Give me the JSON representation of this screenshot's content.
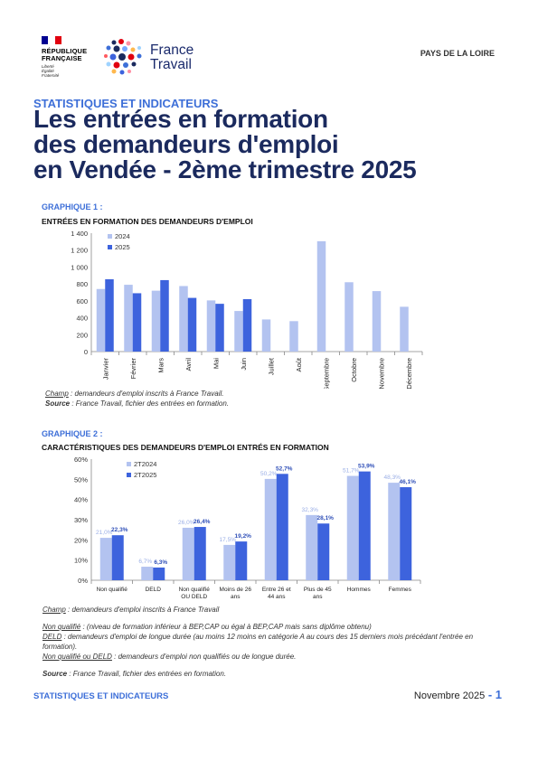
{
  "header": {
    "rf_lines": [
      "RÉPUBLIQUE",
      "FRANÇAISE"
    ],
    "rf_motto": [
      "Liberté",
      "Égalité",
      "Fraternité"
    ],
    "brand_lines": [
      "France",
      "Travail"
    ],
    "region": "PAYS DE LA LOIRE",
    "flag_colors": [
      "#000091",
      "#ffffff",
      "#e1000f"
    ]
  },
  "kicker": "STATISTIQUES ET INDICATEURS",
  "title_lines": [
    "Les entrées en formation",
    "des demandeurs d'emploi",
    "en Vendée - 2ème trimestre 2025"
  ],
  "colors": {
    "light": "#b3c3f0",
    "dark": "#3d63dd",
    "accent": "#3d6fd8",
    "title": "#1b2a5e"
  },
  "chart1": {
    "label": "GRAPHIQUE 1 :",
    "title": "ENTRÉES EN FORMATION DES DEMANDEURS D'EMPLOI",
    "notes": {
      "champ_label": "Champ",
      "champ_text": " : demandeurs d'emploi inscrits à France Travail.",
      "source_label": "Source",
      "source_text": " : France Travail, fichier des entrées en formation."
    }
  },
  "chart2": {
    "label": "GRAPHIQUE 2 :",
    "title": "CARACTÉRISTIQUES DES DEMANDEURS D'EMPLOI ENTRÉS EN FORMATION",
    "notes": {
      "champ_label": "Champ",
      "champ_text": " : demandeurs d'emploi inscrits à France Travail",
      "nq_label": "Non qualifié",
      "nq_text": " : (niveau de formation inférieur à BEP,CAP ou égal à BEP,CAP mais sans diplôme obtenu)",
      "deld_label": "DELD",
      "deld_text": " : demandeurs d'emploi de longue durée (au moins 12 moins en catégorie A au cours des 15 derniers mois précédant l'entrée en formation).",
      "nqd_label": "Non qualifié ou DELD",
      "nqd_text": " : demandeurs d'emploi non qualifiés ou de longue durée.",
      "source_label": "Source",
      "source_text": " : France Travail, fichier des entrées en formation."
    }
  },
  "chart_data": [
    {
      "type": "bar",
      "categories": [
        "Janvier",
        "Février",
        "Mars",
        "Avril",
        "Mai",
        "Juin",
        "Juillet",
        "Août",
        "Septembre",
        "Octobre",
        "Novembre",
        "Décembre"
      ],
      "series": [
        {
          "name": "2024",
          "values": [
            740,
            790,
            720,
            775,
            605,
            480,
            380,
            360,
            1305,
            820,
            715,
            530
          ],
          "color": "#b3c3f0"
        },
        {
          "name": "2025",
          "values": [
            855,
            690,
            845,
            635,
            565,
            620,
            null,
            null,
            null,
            null,
            null,
            null
          ],
          "color": "#3d63dd"
        }
      ],
      "yticks": [
        "0",
        "200",
        "400",
        "600",
        "800",
        "1 000",
        "1 200",
        "1 400"
      ],
      "ylim": [
        0,
        1400
      ],
      "legend": "top-left",
      "grid": false
    },
    {
      "type": "bar",
      "categories": [
        "Non qualifié",
        "DELD",
        "Non qualifié OU DELD",
        "Moins de 26 ans",
        "Entre 26 et 44 ans",
        "Plus de 45 ans",
        "Hommes",
        "Femmes"
      ],
      "series": [
        {
          "name": "2T2024",
          "values": [
            21.0,
            6.7,
            26.0,
            17.5,
            50.2,
            32.3,
            51.7,
            48.3
          ],
          "labels": [
            "21,0%",
            "6,7%",
            "26,0%",
            "17,5%",
            "50,2%",
            "32,3%",
            "51,7%",
            "48,3%"
          ],
          "color": "#b3c3f0"
        },
        {
          "name": "2T2025",
          "values": [
            22.3,
            6.3,
            26.4,
            19.2,
            52.7,
            28.1,
            53.9,
            46.1
          ],
          "labels": [
            "22,3%",
            "6,3%",
            "26,4%",
            "19,2%",
            "52,7%",
            "28,1%",
            "53,9%",
            "46,1%"
          ],
          "color": "#3d63dd"
        }
      ],
      "yticks": [
        "0%",
        "10%",
        "20%",
        "30%",
        "40%",
        "50%",
        "60%"
      ],
      "ylim": [
        0,
        60
      ],
      "legend": "top-left",
      "grid": false
    }
  ],
  "footer": {
    "left": "STATISTIQUES ET INDICATEURS",
    "date": "Novembre 2025",
    "sep": " - ",
    "page": "1"
  }
}
